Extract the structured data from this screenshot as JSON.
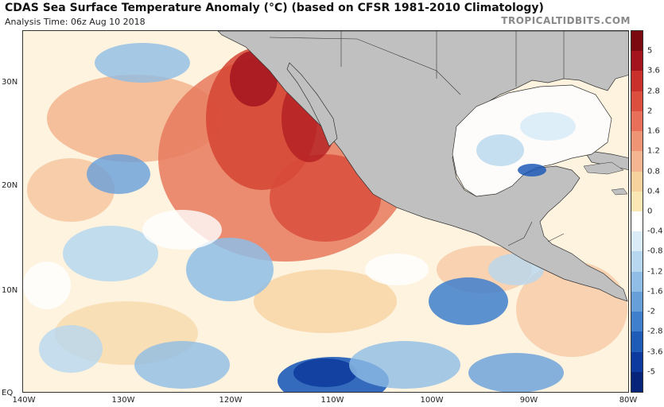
{
  "header": {
    "title": "CDAS Sea Surface Temperature Anomaly (°C) (based on CFSR 1981-2010 Climatology)",
    "analysis_time": "Analysis Time: 06z Aug 10 2018",
    "brand": "TROPICALTIDBITS.COM"
  },
  "axes": {
    "lat_labels": [
      "30N",
      "20N",
      "10N",
      "EQ"
    ],
    "lon_labels": [
      "140W",
      "130W",
      "120W",
      "110W",
      "100W",
      "90W",
      "80W"
    ]
  },
  "colorbar": {
    "labels": [
      "5",
      "3.6",
      "2.8",
      "2",
      "1.6",
      "1.2",
      "0.8",
      "0.4",
      "0",
      "-0.4",
      "-0.8",
      "-1.2",
      "-1.6",
      "-2",
      "-2.8",
      "-3.6",
      "-5"
    ],
    "colors": [
      "#7a0a10",
      "#a3141d",
      "#c9302c",
      "#dc4f3f",
      "#e8705a",
      "#f09476",
      "#f5b591",
      "#f8d29c",
      "#fbe7b3",
      "#ffffff",
      "#d9ecf7",
      "#b6d7ef",
      "#8fbde6",
      "#679fd9",
      "#3f7fcc",
      "#1e5cb8",
      "#0d3a9e",
      "#06247a"
    ]
  },
  "map": {
    "land_color": "#c0c0c0",
    "ocean_neutral": "#fdf3df"
  }
}
